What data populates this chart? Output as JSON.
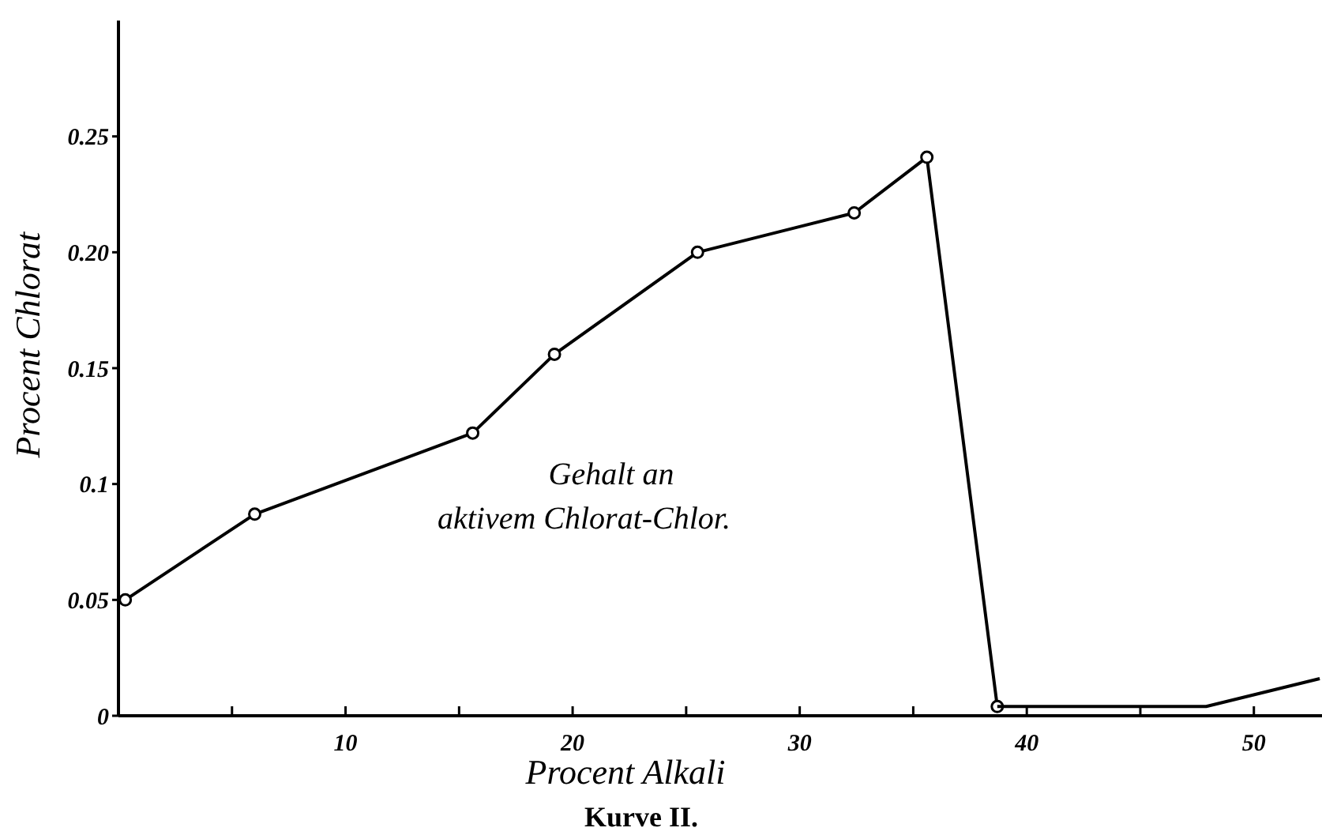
{
  "chart_data": {
    "type": "line",
    "title": "Kurve II.",
    "xlabel": "Procent Alkali",
    "ylabel": "Procent Chlorat",
    "annotations": [
      "Gehalt an\naktivem Chlorat-Chlor."
    ],
    "xlim": [
      0,
      53
    ],
    "ylim": [
      0,
      0.3
    ],
    "xticks": [
      {
        "value": 5,
        "label": null
      },
      10,
      {
        "value": 15,
        "label": null
      },
      20,
      {
        "value": 25,
        "label": null
      },
      30,
      {
        "value": 35,
        "label": null
      },
      40,
      {
        "value": 45,
        "label": null
      },
      50
    ],
    "yticks": [
      0,
      0.05,
      0.1,
      0.15,
      {
        "value": 0.2,
        "label": "0.20"
      },
      0.25
    ],
    "grid": false,
    "line_style": "solid",
    "series": [
      {
        "color": "#000000",
        "marker": "circle",
        "x": [
          0.3,
          6,
          15.6,
          19.2,
          25.5,
          32.4,
          35.6,
          38.7
        ],
        "values": [
          0.05,
          0.087,
          0.122,
          0.156,
          0.2,
          0.217,
          0.241,
          0.004
        ]
      },
      {
        "color": "#000000",
        "marker": "none",
        "x": [
          38.7,
          47.9,
          52.9
        ],
        "values": [
          0.004,
          0.004,
          0.016
        ]
      }
    ]
  }
}
